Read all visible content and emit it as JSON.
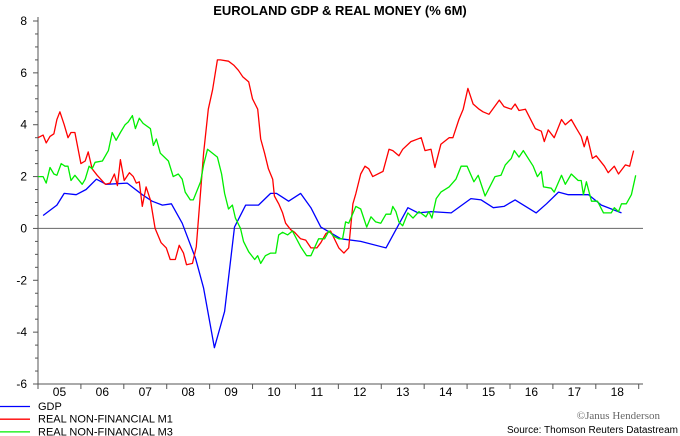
{
  "chart_data": {
    "type": "line",
    "title": "EUROLAND GDP & REAL MONEY (% 6M)",
    "xlabel": "",
    "ylabel": "",
    "xlim": [
      2005,
      2019.1
    ],
    "ylim": [
      -6,
      8
    ],
    "y_ticks": [
      "-6",
      "-4",
      "-2",
      "0",
      "2",
      "4",
      "6",
      "8"
    ],
    "y_tick_values": [
      -6,
      -4,
      -2,
      0,
      2,
      4,
      6,
      8
    ],
    "x_tick_labels": [
      "05",
      "06",
      "07",
      "08",
      "09",
      "10",
      "11",
      "12",
      "13",
      "14",
      "15",
      "16",
      "17",
      "18"
    ],
    "x_tick_years": [
      2005,
      2006,
      2007,
      2008,
      2009,
      2010,
      2011,
      2012,
      2013,
      2014,
      2015,
      2016,
      2017,
      2018
    ],
    "zero_line": true,
    "grid": false,
    "legend_placement": "bottom-left",
    "source": "Source: Thomson Reuters Datastream",
    "copyright": "©Janus Henderson",
    "series": [
      {
        "name": "GDP",
        "color": "#0000ff",
        "points": [
          [
            2005.12,
            0.5
          ],
          [
            2005.44,
            0.9
          ],
          [
            2005.61,
            1.35
          ],
          [
            2005.89,
            1.3
          ],
          [
            2006.12,
            1.5
          ],
          [
            2006.36,
            1.9
          ],
          [
            2006.59,
            1.7
          ],
          [
            2007.08,
            1.75
          ],
          [
            2007.43,
            1.3
          ],
          [
            2007.66,
            1.05
          ],
          [
            2007.9,
            0.9
          ],
          [
            2008.11,
            0.95
          ],
          [
            2008.36,
            0.2
          ],
          [
            2008.67,
            -1.15
          ],
          [
            2008.86,
            -2.3
          ],
          [
            2009.11,
            -4.6
          ],
          [
            2009.35,
            -3.2
          ],
          [
            2009.58,
            0.05
          ],
          [
            2009.84,
            0.9
          ],
          [
            2010.14,
            0.9
          ],
          [
            2010.42,
            1.35
          ],
          [
            2010.56,
            1.35
          ],
          [
            2010.84,
            1.05
          ],
          [
            2011.12,
            1.35
          ],
          [
            2011.36,
            0.8
          ],
          [
            2011.59,
            0.05
          ],
          [
            2012.06,
            -0.4
          ],
          [
            2012.52,
            -0.5
          ],
          [
            2013.11,
            -0.75
          ],
          [
            2013.62,
            0.8
          ],
          [
            2013.86,
            0.6
          ],
          [
            2014.16,
            0.65
          ],
          [
            2014.63,
            0.6
          ],
          [
            2015.09,
            1.15
          ],
          [
            2015.33,
            1.1
          ],
          [
            2015.61,
            0.8
          ],
          [
            2015.86,
            0.85
          ],
          [
            2016.12,
            1.1
          ],
          [
            2016.61,
            0.6
          ],
          [
            2016.85,
            0.95
          ],
          [
            2017.13,
            1.4
          ],
          [
            2017.36,
            1.3
          ],
          [
            2017.83,
            1.3
          ],
          [
            2018.13,
            0.9
          ],
          [
            2018.6,
            0.6
          ]
        ]
      },
      {
        "name": "REAL NON-FINANCIAL M1",
        "color": "#ff0000",
        "points": [
          [
            2005.0,
            3.5
          ],
          [
            2005.12,
            3.6
          ],
          [
            2005.19,
            3.3
          ],
          [
            2005.28,
            3.55
          ],
          [
            2005.37,
            3.65
          ],
          [
            2005.44,
            4.2
          ],
          [
            2005.51,
            4.5
          ],
          [
            2005.61,
            4.0
          ],
          [
            2005.7,
            3.5
          ],
          [
            2005.77,
            3.7
          ],
          [
            2005.86,
            3.7
          ],
          [
            2006.0,
            2.5
          ],
          [
            2006.1,
            2.6
          ],
          [
            2006.17,
            2.95
          ],
          [
            2006.26,
            2.3
          ],
          [
            2006.38,
            2.05
          ],
          [
            2006.57,
            1.7
          ],
          [
            2006.68,
            1.75
          ],
          [
            2006.78,
            2.1
          ],
          [
            2006.85,
            1.65
          ],
          [
            2006.92,
            2.65
          ],
          [
            2007.01,
            1.85
          ],
          [
            2007.13,
            2.15
          ],
          [
            2007.22,
            2.0
          ],
          [
            2007.29,
            1.75
          ],
          [
            2007.36,
            1.8
          ],
          [
            2007.43,
            0.85
          ],
          [
            2007.52,
            1.6
          ],
          [
            2007.62,
            1.1
          ],
          [
            2007.73,
            0
          ],
          [
            2007.87,
            -0.55
          ],
          [
            2007.99,
            -0.75
          ],
          [
            2008.08,
            -1.2
          ],
          [
            2008.2,
            -1.2
          ],
          [
            2008.29,
            -0.65
          ],
          [
            2008.39,
            -0.95
          ],
          [
            2008.46,
            -1.4
          ],
          [
            2008.6,
            -1.35
          ],
          [
            2008.69,
            -0.7
          ],
          [
            2008.86,
            2.9
          ],
          [
            2008.97,
            4.6
          ],
          [
            2009.07,
            5.35
          ],
          [
            2009.18,
            6.5
          ],
          [
            2009.25,
            6.5
          ],
          [
            2009.44,
            6.45
          ],
          [
            2009.56,
            6.3
          ],
          [
            2009.67,
            6.1
          ],
          [
            2009.77,
            5.85
          ],
          [
            2009.91,
            5.65
          ],
          [
            2010.0,
            5.0
          ],
          [
            2010.12,
            4.6
          ],
          [
            2010.19,
            3.45
          ],
          [
            2010.28,
            2.9
          ],
          [
            2010.37,
            2.3
          ],
          [
            2010.47,
            1.9
          ],
          [
            2010.51,
            1.25
          ],
          [
            2010.61,
            0.95
          ],
          [
            2010.7,
            0.6
          ],
          [
            2010.77,
            0.2
          ],
          [
            2010.89,
            -0.05
          ],
          [
            2010.98,
            -0.15
          ],
          [
            2011.12,
            -0.4
          ],
          [
            2011.24,
            -0.45
          ],
          [
            2011.36,
            -0.75
          ],
          [
            2011.5,
            -0.75
          ],
          [
            2011.59,
            -0.55
          ],
          [
            2011.71,
            -0.2
          ],
          [
            2011.82,
            -0.1
          ],
          [
            2012.01,
            -0.75
          ],
          [
            2012.13,
            -0.95
          ],
          [
            2012.24,
            -0.75
          ],
          [
            2012.34,
            0.95
          ],
          [
            2012.41,
            1.35
          ],
          [
            2012.52,
            2.1
          ],
          [
            2012.62,
            2.4
          ],
          [
            2012.71,
            2.3
          ],
          [
            2012.8,
            2.0
          ],
          [
            2013.04,
            2.2
          ],
          [
            2013.18,
            3.05
          ],
          [
            2013.27,
            3.0
          ],
          [
            2013.41,
            2.8
          ],
          [
            2013.5,
            3.05
          ],
          [
            2013.69,
            3.35
          ],
          [
            2013.93,
            3.5
          ],
          [
            2014.02,
            3.0
          ],
          [
            2014.16,
            3.05
          ],
          [
            2014.25,
            2.35
          ],
          [
            2014.39,
            3.25
          ],
          [
            2014.58,
            3.5
          ],
          [
            2014.67,
            3.5
          ],
          [
            2014.81,
            4.2
          ],
          [
            2014.91,
            4.6
          ],
          [
            2015.02,
            5.4
          ],
          [
            2015.14,
            4.8
          ],
          [
            2015.28,
            4.6
          ],
          [
            2015.37,
            4.5
          ],
          [
            2015.51,
            4.4
          ],
          [
            2015.75,
            4.95
          ],
          [
            2015.86,
            4.7
          ],
          [
            2016.03,
            4.6
          ],
          [
            2016.12,
            4.8
          ],
          [
            2016.21,
            4.55
          ],
          [
            2016.36,
            4.6
          ],
          [
            2016.59,
            3.85
          ],
          [
            2016.73,
            3.75
          ],
          [
            2016.8,
            3.35
          ],
          [
            2016.89,
            3.8
          ],
          [
            2017.03,
            3.5
          ],
          [
            2017.2,
            4.2
          ],
          [
            2017.29,
            4.0
          ],
          [
            2017.43,
            4.2
          ],
          [
            2017.55,
            3.85
          ],
          [
            2017.66,
            3.55
          ],
          [
            2017.73,
            3.15
          ],
          [
            2017.8,
            3.55
          ],
          [
            2017.92,
            2.7
          ],
          [
            2018.01,
            2.8
          ],
          [
            2018.2,
            2.4
          ],
          [
            2018.29,
            2.15
          ],
          [
            2018.43,
            2.4
          ],
          [
            2018.53,
            2.1
          ],
          [
            2018.69,
            2.45
          ],
          [
            2018.79,
            2.4
          ],
          [
            2018.88,
            3.0
          ]
        ]
      },
      {
        "name": "REAL NON-FINANCIAL M3",
        "color": "#00ee00",
        "points": [
          [
            2005.0,
            2.0
          ],
          [
            2005.12,
            2.0
          ],
          [
            2005.19,
            1.75
          ],
          [
            2005.28,
            2.35
          ],
          [
            2005.37,
            2.1
          ],
          [
            2005.44,
            2.05
          ],
          [
            2005.54,
            2.5
          ],
          [
            2005.63,
            2.4
          ],
          [
            2005.7,
            2.4
          ],
          [
            2005.77,
            1.85
          ],
          [
            2005.86,
            2.05
          ],
          [
            2006.03,
            1.7
          ],
          [
            2006.1,
            1.9
          ],
          [
            2006.19,
            2.4
          ],
          [
            2006.26,
            2.3
          ],
          [
            2006.33,
            2.55
          ],
          [
            2006.5,
            2.6
          ],
          [
            2006.64,
            3.0
          ],
          [
            2006.73,
            3.7
          ],
          [
            2006.82,
            3.4
          ],
          [
            2006.92,
            3.7
          ],
          [
            2007.03,
            4.0
          ],
          [
            2007.1,
            4.1
          ],
          [
            2007.2,
            4.35
          ],
          [
            2007.27,
            3.85
          ],
          [
            2007.36,
            4.25
          ],
          [
            2007.45,
            4.05
          ],
          [
            2007.62,
            3.85
          ],
          [
            2007.69,
            3.2
          ],
          [
            2007.76,
            3.45
          ],
          [
            2007.85,
            2.9
          ],
          [
            2008.04,
            2.6
          ],
          [
            2008.15,
            2.0
          ],
          [
            2008.27,
            2.1
          ],
          [
            2008.36,
            1.9
          ],
          [
            2008.43,
            1.4
          ],
          [
            2008.55,
            1.1
          ],
          [
            2008.62,
            1.1
          ],
          [
            2008.79,
            1.8
          ],
          [
            2008.86,
            2.45
          ],
          [
            2008.95,
            3.05
          ],
          [
            2009.18,
            2.75
          ],
          [
            2009.28,
            2.1
          ],
          [
            2009.35,
            1.35
          ],
          [
            2009.44,
            0.75
          ],
          [
            2009.53,
            0.9
          ],
          [
            2009.6,
            0.4
          ],
          [
            2009.72,
            0
          ],
          [
            2009.79,
            -0.5
          ],
          [
            2009.91,
            -0.9
          ],
          [
            2010.05,
            -1.2
          ],
          [
            2010.12,
            -1.05
          ],
          [
            2010.19,
            -1.35
          ],
          [
            2010.3,
            -1.05
          ],
          [
            2010.42,
            -0.95
          ],
          [
            2010.54,
            -0.95
          ],
          [
            2010.61,
            -0.25
          ],
          [
            2010.7,
            -0.15
          ],
          [
            2010.82,
            -0.25
          ],
          [
            2010.93,
            -0.1
          ],
          [
            2011.12,
            -0.7
          ],
          [
            2011.26,
            -1.05
          ],
          [
            2011.36,
            -1.05
          ],
          [
            2011.54,
            -0.4
          ],
          [
            2011.68,
            -0.4
          ],
          [
            2011.78,
            -0.1
          ],
          [
            2011.89,
            -0.3
          ],
          [
            2012.01,
            -0.4
          ],
          [
            2012.1,
            -0.4
          ],
          [
            2012.17,
            0.25
          ],
          [
            2012.24,
            0.2
          ],
          [
            2012.41,
            0.85
          ],
          [
            2012.52,
            0.75
          ],
          [
            2012.66,
            0.05
          ],
          [
            2012.76,
            0.45
          ],
          [
            2012.87,
            0.25
          ],
          [
            2012.99,
            0.2
          ],
          [
            2013.11,
            0.55
          ],
          [
            2013.22,
            0.55
          ],
          [
            2013.27,
            0.85
          ],
          [
            2013.34,
            0.65
          ],
          [
            2013.41,
            0.25
          ],
          [
            2013.5,
            0.1
          ],
          [
            2013.62,
            0.6
          ],
          [
            2013.74,
            0.4
          ],
          [
            2013.88,
            0.65
          ],
          [
            2014.04,
            0.45
          ],
          [
            2014.11,
            0.65
          ],
          [
            2014.18,
            0.4
          ],
          [
            2014.28,
            1.15
          ],
          [
            2014.39,
            1.4
          ],
          [
            2014.58,
            1.6
          ],
          [
            2014.74,
            1.9
          ],
          [
            2014.86,
            2.4
          ],
          [
            2015.0,
            2.4
          ],
          [
            2015.16,
            1.8
          ],
          [
            2015.26,
            2.05
          ],
          [
            2015.42,
            1.25
          ],
          [
            2015.65,
            2.0
          ],
          [
            2015.79,
            2.05
          ],
          [
            2015.89,
            2.45
          ],
          [
            2016.03,
            2.7
          ],
          [
            2016.1,
            3.0
          ],
          [
            2016.21,
            2.75
          ],
          [
            2016.31,
            3.0
          ],
          [
            2016.54,
            2.4
          ],
          [
            2016.64,
            2.0
          ],
          [
            2016.73,
            2.2
          ],
          [
            2016.78,
            1.6
          ],
          [
            2016.96,
            1.55
          ],
          [
            2017.03,
            1.4
          ],
          [
            2017.2,
            2.05
          ],
          [
            2017.29,
            1.7
          ],
          [
            2017.43,
            2.1
          ],
          [
            2017.59,
            1.85
          ],
          [
            2017.66,
            1.85
          ],
          [
            2017.71,
            1.3
          ],
          [
            2017.78,
            1.8
          ],
          [
            2017.9,
            1.05
          ],
          [
            2018.04,
            1.05
          ],
          [
            2018.18,
            0.6
          ],
          [
            2018.36,
            0.6
          ],
          [
            2018.43,
            0.8
          ],
          [
            2018.53,
            0.65
          ],
          [
            2018.6,
            0.95
          ],
          [
            2018.71,
            0.95
          ],
          [
            2018.83,
            1.3
          ],
          [
            2018.93,
            2.05
          ]
        ]
      }
    ]
  }
}
